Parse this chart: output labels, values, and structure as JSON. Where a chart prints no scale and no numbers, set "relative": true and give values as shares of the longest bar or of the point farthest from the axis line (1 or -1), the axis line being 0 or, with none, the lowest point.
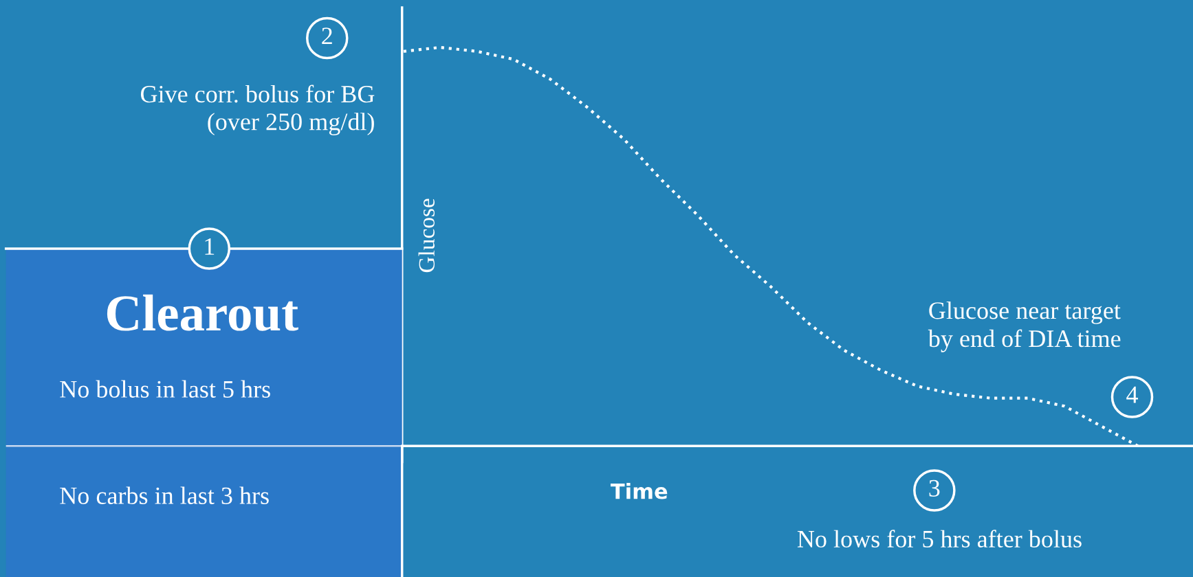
{
  "chart_data": {
    "type": "line",
    "title": "Clearout",
    "xlabel": "Time",
    "ylabel": "Glucose",
    "relative": true,
    "line_style": "dotted",
    "marker": "none",
    "grid": false,
    "legend": false,
    "categories": [
      null,
      null,
      null,
      null,
      null,
      null,
      null,
      null,
      null,
      null,
      null,
      null,
      null,
      null,
      null,
      null,
      null,
      null,
      null,
      null,
      null
    ],
    "series": [
      {
        "color": "#ffffff",
        "values": [
          0.99,
          1.0,
          0.99,
          0.97,
          0.92,
          0.85,
          0.77,
          0.67,
          0.58,
          0.48,
          0.4,
          0.31,
          0.24,
          0.19,
          0.15,
          0.13,
          0.12,
          0.12,
          0.1,
          0.05,
          0.0
        ]
      }
    ],
    "annotations": [
      "Give corr. bolus for BG\n(over 250 mg/dl)",
      "No bolus in last 5 hrs",
      "No carbs in last 3 hrs",
      "Glucose near target\nby end of DIA time",
      "No lows for 5 hrs after bolus",
      "1",
      "2",
      "3",
      "4"
    ]
  }
}
